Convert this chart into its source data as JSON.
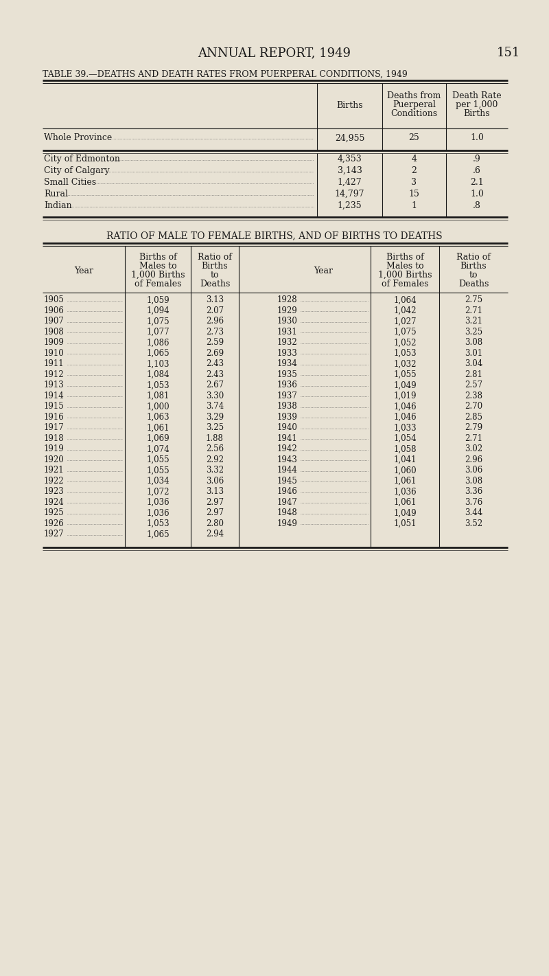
{
  "page_title": "ANNUAL REPORT, 1949",
  "page_number": "151",
  "bg_color": "#e8e2d4",
  "table1_title": "TABLE 39.—DEATHS AND DEATH RATES FROM PUERPERAL CONDITIONS, 1949",
  "table1_rows": [
    [
      "Whole Province",
      "24,955",
      "25",
      "1.0"
    ],
    [
      "City of Edmonton",
      "4,353",
      "4",
      ".9"
    ],
    [
      "City of Calgary",
      "3,143",
      "2",
      ".6"
    ],
    [
      "Small Cities",
      "1,427",
      "3",
      "2.1"
    ],
    [
      "Rural",
      "14,797",
      "15",
      "1.0"
    ],
    [
      "Indian",
      "1,235",
      "1",
      ".8"
    ]
  ],
  "table2_title": "RATIO OF MALE TO FEMALE BIRTHS, AND OF BIRTHS TO DEATHS",
  "table2_left": [
    [
      "1905",
      "1,059",
      "3.13"
    ],
    [
      "1906",
      "1,094",
      "2.07"
    ],
    [
      "1907",
      "1,075",
      "2.96"
    ],
    [
      "1908",
      "1,077",
      "2.73"
    ],
    [
      "1909",
      "1,086",
      "2.59"
    ],
    [
      "1910",
      "1,065",
      "2.69"
    ],
    [
      "1911",
      "1,103",
      "2.43"
    ],
    [
      "1912",
      "1,084",
      "2.43"
    ],
    [
      "1913",
      "1,053",
      "2.67"
    ],
    [
      "1914",
      "1,081",
      "3.30"
    ],
    [
      "1915",
      "1,000",
      "3.74"
    ],
    [
      "1916",
      "1,063",
      "3.29"
    ],
    [
      "1917",
      "1,061",
      "3.25"
    ],
    [
      "1918",
      "1,069",
      "1.88"
    ],
    [
      "1919",
      "1,074",
      "2.56"
    ],
    [
      "1920",
      "1,055",
      "2.92"
    ],
    [
      "1921",
      "1,055",
      "3.32"
    ],
    [
      "1922",
      "1,034",
      "3.06"
    ],
    [
      "1923",
      "1,072",
      "3.13"
    ],
    [
      "1924",
      "1,036",
      "2.97"
    ],
    [
      "1925",
      "1,036",
      "2.97"
    ],
    [
      "1926",
      "1,053",
      "2.80"
    ],
    [
      "1927",
      "1,065",
      "2.94"
    ]
  ],
  "table2_right": [
    [
      "1928",
      "1,064",
      "2.75"
    ],
    [
      "1929",
      "1,042",
      "2.71"
    ],
    [
      "1930",
      "1,027",
      "3.21"
    ],
    [
      "1931",
      "1,075",
      "3.25"
    ],
    [
      "1932",
      "1,052",
      "3.08"
    ],
    [
      "1933",
      "1,053",
      "3.01"
    ],
    [
      "1934",
      "1,032",
      "3.04"
    ],
    [
      "1935",
      "1,055",
      "2.81"
    ],
    [
      "1936",
      "1,049",
      "2.57"
    ],
    [
      "1937",
      "1,019",
      "2.38"
    ],
    [
      "1938",
      "1,046",
      "2.70"
    ],
    [
      "1939",
      "1,046",
      "2.85"
    ],
    [
      "1940",
      "1,033",
      "2.79"
    ],
    [
      "1941",
      "1,054",
      "2.71"
    ],
    [
      "1942",
      "1,058",
      "3.02"
    ],
    [
      "1943",
      "1,041",
      "2.96"
    ],
    [
      "1944",
      "1,060",
      "3.06"
    ],
    [
      "1945",
      "1,061",
      "3.08"
    ],
    [
      "1946",
      "1,036",
      "3.36"
    ],
    [
      "1947",
      "1,061",
      "3.76"
    ],
    [
      "1948",
      "1,049",
      "3.44"
    ],
    [
      "1949",
      "1,051",
      "3.52"
    ]
  ]
}
